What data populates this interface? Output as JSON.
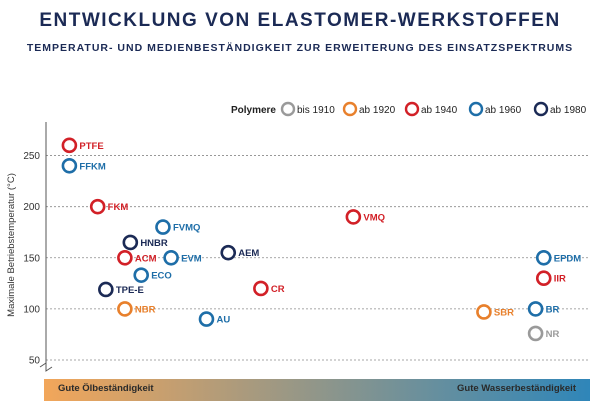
{
  "header": {
    "title": "ENTWICKLUNG VON ELASTOMER-WERKSTOFFEN",
    "subtitle": "TEMPERATUR- UND MEDIENBESTÄNDIGKEIT ZUR ERWEITERUNG DES EINSATZSPEKTRUMS"
  },
  "colors": {
    "title": "#1b2a55",
    "bar_start": "#f2a65a",
    "bar_end": "#2f86b9",
    "grid": "#8a8a8a"
  },
  "chart_data": {
    "type": "scatter",
    "title": "ENTWICKLUNG VON ELASTOMER-WERKSTOFFEN",
    "subtitle": "TEMPERATUR- UND MEDIENBESTÄNDIGKEIT ZUR ERWEITERUNG DES EINSATZSPEKTRUMS",
    "ylabel": "Maximale Betriebstemperatur (°C)",
    "xlabel_left": "Gute Ölbeständigkeit",
    "xlabel_right": "Gute Wasserbeständigkeit",
    "ylim": [
      50,
      275
    ],
    "yticks": [
      50,
      100,
      150,
      200,
      250
    ],
    "xlim": [
      0,
      100
    ],
    "y_axis_break": true,
    "grid": "horizontal-dashed",
    "legend_title": "Polymere",
    "legend_position": "top-right",
    "series": [
      {
        "name": "bis 1910",
        "color": "#9a9a9a"
      },
      {
        "name": "ab 1920",
        "color": "#e8802c"
      },
      {
        "name": "ab 1940",
        "color": "#d22027"
      },
      {
        "name": "ab 1960",
        "color": "#1e6ea8"
      },
      {
        "name": "ab 1980",
        "color": "#1b2a55"
      }
    ],
    "points": [
      {
        "label": "PTFE",
        "x": 4.3,
        "y": 260,
        "series": 2
      },
      {
        "label": "FFKM",
        "x": 4.3,
        "y": 240,
        "series": 3
      },
      {
        "label": "FKM",
        "x": 9.5,
        "y": 200,
        "series": 2
      },
      {
        "label": "FVMQ",
        "x": 21.5,
        "y": 180,
        "series": 3
      },
      {
        "label": "VMQ",
        "x": 56.5,
        "y": 190,
        "series": 2
      },
      {
        "label": "HNBR",
        "x": 15.5,
        "y": 165,
        "series": 4
      },
      {
        "label": "ACM",
        "x": 14.5,
        "y": 150,
        "series": 2
      },
      {
        "label": "EVM",
        "x": 23.0,
        "y": 150,
        "series": 3
      },
      {
        "label": "AEM",
        "x": 33.5,
        "y": 155,
        "series": 4
      },
      {
        "label": "ECO",
        "x": 17.5,
        "y": 133,
        "series": 3
      },
      {
        "label": "TPE-E",
        "x": 11.0,
        "y": 119,
        "series": 4
      },
      {
        "label": "CR",
        "x": 39.5,
        "y": 120,
        "series": 2
      },
      {
        "label": "NBR",
        "x": 14.5,
        "y": 100,
        "series": 1
      },
      {
        "label": "AU",
        "x": 29.5,
        "y": 90,
        "series": 3
      },
      {
        "label": "EPDM",
        "x": 91.5,
        "y": 150,
        "series": 3
      },
      {
        "label": "IIR",
        "x": 91.5,
        "y": 130,
        "series": 2
      },
      {
        "label": "SBR",
        "x": 80.5,
        "y": 97,
        "series": 1
      },
      {
        "label": "BR",
        "x": 90.0,
        "y": 100,
        "series": 3
      },
      {
        "label": "NR",
        "x": 90.0,
        "y": 76,
        "series": 0
      }
    ]
  }
}
